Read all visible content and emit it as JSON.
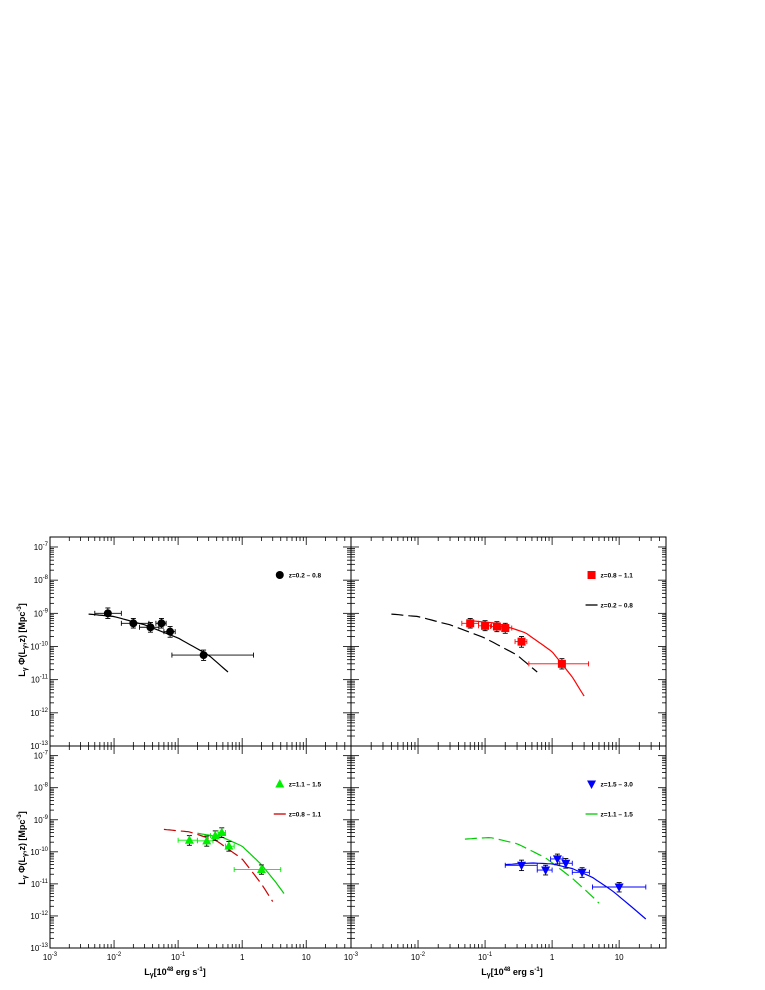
{
  "figure": {
    "ylabel_main": "L",
    "ylabel_sub": "γ",
    "ylabel_phi": " Φ(L",
    "ylabel_phi_sub": "γ",
    "ylabel_rest": ",z) [Mpc",
    "ylabel_sup": "-3",
    "ylabel_end": "]",
    "xlabel_main": "L",
    "xlabel_sub": "γ",
    "xlabel_open": "[10",
    "xlabel_sup": "48",
    "xlabel_rest": " erg s",
    "xlabel_sup2": "-1",
    "xlabel_end": "]"
  },
  "chart_data": [
    {
      "type": "scatter",
      "panel": "top-left",
      "xscale": "log",
      "yscale": "log",
      "xlim": [
        0.001,
        50
      ],
      "ylim": [
        1e-13,
        2e-07
      ],
      "show_x_ticklabels": false,
      "show_y_ticklabels": true,
      "show_ylabel": true,
      "show_xlabel": false,
      "legend": [
        {
          "label": "z=0.2 – 0.8",
          "marker": "circle",
          "color": "#000000"
        }
      ],
      "series": [
        {
          "name": "z=0.2 – 0.8",
          "marker": "circle",
          "color": "#000000",
          "points": [
            {
              "x": 0.008,
              "y": 1e-09,
              "xlo": 0.005,
              "xhi": 0.013,
              "ylo": 7e-10,
              "yhi": 1.45e-09
            },
            {
              "x": 0.02,
              "y": 5e-10,
              "xlo": 0.013,
              "xhi": 0.035,
              "ylo": 3.6e-10,
              "yhi": 7e-10
            },
            {
              "x": 0.037,
              "y": 3.8e-10,
              "xlo": 0.025,
              "xhi": 0.05,
              "ylo": 2.7e-10,
              "yhi": 5.3e-10
            },
            {
              "x": 0.055,
              "y": 5e-10,
              "xlo": 0.045,
              "xhi": 0.065,
              "ylo": 3.6e-10,
              "yhi": 7e-10
            },
            {
              "x": 0.075,
              "y": 2.8e-10,
              "xlo": 0.06,
              "xhi": 0.09,
              "ylo": 1.9e-10,
              "yhi": 4e-10
            },
            {
              "x": 0.25,
              "y": 5.5e-11,
              "xlo": 0.08,
              "xhi": 1.5,
              "ylo": 3.8e-11,
              "yhi": 7.8e-11
            }
          ]
        }
      ],
      "curves": [
        {
          "color": "#000000",
          "dash": false,
          "x": [
            0.004,
            0.01,
            0.03,
            0.1,
            0.3,
            0.6
          ],
          "y": [
            9.5e-10,
            8e-10,
            4.5e-10,
            1.8e-10,
            5.5e-11,
            1.7e-11
          ]
        }
      ]
    },
    {
      "type": "scatter",
      "panel": "top-right",
      "xscale": "log",
      "yscale": "log",
      "xlim": [
        0.001,
        50
      ],
      "ylim": [
        1e-13,
        2e-07
      ],
      "show_x_ticklabels": false,
      "show_y_ticklabels": false,
      "show_ylabel": false,
      "show_xlabel": false,
      "legend": [
        {
          "label": "z=0.8 – 1.1",
          "marker": "square",
          "color": "#ff0000"
        },
        {
          "label": "z=0.2 – 0.8",
          "marker": "line",
          "color": "#000000"
        }
      ],
      "series": [
        {
          "name": "z=0.8 – 1.1",
          "marker": "square",
          "color": "#ff0000",
          "points": [
            {
              "x": 0.06,
              "y": 5e-10,
              "xlo": 0.045,
              "xhi": 0.08,
              "ylo": 3.6e-10,
              "yhi": 7e-10
            },
            {
              "x": 0.1,
              "y": 4.2e-10,
              "xlo": 0.08,
              "xhi": 0.125,
              "ylo": 3e-10,
              "yhi": 6e-10
            },
            {
              "x": 0.15,
              "y": 4e-10,
              "xlo": 0.12,
              "xhi": 0.18,
              "ylo": 2.8e-10,
              "yhi": 5.6e-10
            },
            {
              "x": 0.2,
              "y": 3.6e-10,
              "xlo": 0.17,
              "xhi": 0.25,
              "ylo": 2.5e-10,
              "yhi": 5e-10
            },
            {
              "x": 0.35,
              "y": 1.4e-10,
              "xlo": 0.28,
              "xhi": 0.42,
              "ylo": 9.5e-11,
              "yhi": 2e-10
            },
            {
              "x": 1.4,
              "y": 3e-11,
              "xlo": 0.45,
              "xhi": 3.5,
              "ylo": 2.1e-11,
              "yhi": 4.3e-11
            }
          ]
        }
      ],
      "curves": [
        {
          "color": "#000000",
          "dash": true,
          "x": [
            0.004,
            0.01,
            0.03,
            0.1,
            0.3,
            0.6
          ],
          "y": [
            9.5e-10,
            8e-10,
            4.5e-10,
            1.8e-10,
            5.5e-11,
            1.7e-11
          ]
        },
        {
          "color": "#ff0000",
          "dash": false,
          "x": [
            0.06,
            0.15,
            0.4,
            1.0,
            2.0,
            3.0
          ],
          "y": [
            6e-10,
            5e-10,
            2.6e-10,
            7e-11,
            1.2e-11,
            3.2e-12
          ]
        }
      ]
    },
    {
      "type": "scatter",
      "panel": "bottom-left",
      "xscale": "log",
      "yscale": "log",
      "xlim": [
        0.001,
        50
      ],
      "ylim": [
        1e-13,
        2e-07
      ],
      "show_x_ticklabels": true,
      "show_y_ticklabels": true,
      "show_ylabel": true,
      "show_xlabel": true,
      "legend": [
        {
          "label": "z=1.1 – 1.5",
          "marker": "triangle-up",
          "color": "#00ee00"
        },
        {
          "label": "z=0.8 – 1.1",
          "marker": "line",
          "color": "#cc0000"
        }
      ],
      "series": [
        {
          "name": "z=1.1 – 1.5",
          "marker": "triangle-up",
          "color": "#00ee00",
          "points": [
            {
              "x": 0.15,
              "y": 2.3e-10,
              "xlo": 0.1,
              "xhi": 0.2,
              "ylo": 1.6e-10,
              "yhi": 3.2e-10
            },
            {
              "x": 0.28,
              "y": 2.2e-10,
              "xlo": 0.2,
              "xhi": 0.35,
              "ylo": 1.5e-10,
              "yhi": 3.1e-10
            },
            {
              "x": 0.38,
              "y": 3.2e-10,
              "xlo": 0.32,
              "xhi": 0.45,
              "ylo": 2.3e-10,
              "yhi": 4.5e-10
            },
            {
              "x": 0.48,
              "y": 4e-10,
              "xlo": 0.42,
              "xhi": 0.55,
              "ylo": 2.8e-10,
              "yhi": 5.6e-10
            },
            {
              "x": 0.62,
              "y": 1.5e-10,
              "xlo": 0.55,
              "xhi": 0.75,
              "ylo": 1.05e-10,
              "yhi": 2.1e-10
            },
            {
              "x": 2.0,
              "y": 2.8e-11,
              "xlo": 0.75,
              "xhi": 4.0,
              "ylo": 2e-11,
              "yhi": 3.9e-11
            }
          ]
        }
      ],
      "curves": [
        {
          "color": "#cc0000",
          "dash": true,
          "x": [
            0.06,
            0.15,
            0.4,
            1.0,
            2.0,
            3.0
          ],
          "y": [
            5e-10,
            4.2e-10,
            2.2e-10,
            6e-11,
            1e-11,
            2.8e-12
          ]
        },
        {
          "color": "#00cc00",
          "dash": false,
          "x": [
            0.2,
            0.5,
            1.0,
            2.0,
            3.5,
            4.5
          ],
          "y": [
            3.8e-10,
            2.8e-10,
            1.5e-10,
            4e-11,
            1e-11,
            5e-12
          ]
        }
      ]
    },
    {
      "type": "scatter",
      "panel": "bottom-right",
      "xscale": "log",
      "yscale": "log",
      "xlim": [
        0.001,
        50
      ],
      "ylim": [
        1e-13,
        2e-07
      ],
      "show_x_ticklabels": true,
      "show_y_ticklabels": false,
      "show_ylabel": false,
      "show_xlabel": true,
      "legend": [
        {
          "label": "z=1.5 – 3.0",
          "marker": "triangle-down",
          "color": "#0000ff"
        },
        {
          "label": "z=1.1 – 1.5",
          "marker": "line",
          "color": "#00cc00"
        }
      ],
      "series": [
        {
          "name": "z=1.5 – 3.0",
          "marker": "triangle-down",
          "color": "#0000ff",
          "points": [
            {
              "x": 0.35,
              "y": 3.8e-11,
              "xlo": 0.2,
              "xhi": 0.6,
              "ylo": 2.6e-11,
              "yhi": 5.5e-11
            },
            {
              "x": 0.8,
              "y": 2.7e-11,
              "xlo": 0.6,
              "xhi": 1.0,
              "ylo": 1.9e-11,
              "yhi": 3.8e-11
            },
            {
              "x": 1.2,
              "y": 6e-11,
              "xlo": 0.95,
              "xhi": 1.45,
              "ylo": 4.2e-11,
              "yhi": 8.5e-11
            },
            {
              "x": 1.6,
              "y": 4.4e-11,
              "xlo": 1.3,
              "xhi": 2.0,
              "ylo": 3.1e-11,
              "yhi": 6.2e-11
            },
            {
              "x": 2.8,
              "y": 2.3e-11,
              "xlo": 2.0,
              "xhi": 3.6,
              "ylo": 1.6e-11,
              "yhi": 3.2e-11
            },
            {
              "x": 10.0,
              "y": 8e-12,
              "xlo": 4.0,
              "xhi": 25.0,
              "ylo": 5.6e-12,
              "yhi": 1.1e-11
            }
          ]
        }
      ],
      "curves": [
        {
          "color": "#00cc00",
          "dash": true,
          "x": [
            0.05,
            0.12,
            0.3,
            0.8,
            2.0,
            4.0,
            5.0
          ],
          "y": [
            2.5e-10,
            2.8e-10,
            1.8e-10,
            6.5e-11,
            1.5e-11,
            4e-12,
            2.5e-12
          ]
        },
        {
          "color": "#0000ff",
          "dash": false,
          "x": [
            0.2,
            0.5,
            1.0,
            2.0,
            4.0,
            8.0,
            15.0,
            25.0
          ],
          "y": [
            4e-11,
            4.5e-11,
            4.2e-11,
            3e-11,
            1.6e-11,
            6e-12,
            2e-12,
            8e-13
          ]
        }
      ]
    }
  ]
}
